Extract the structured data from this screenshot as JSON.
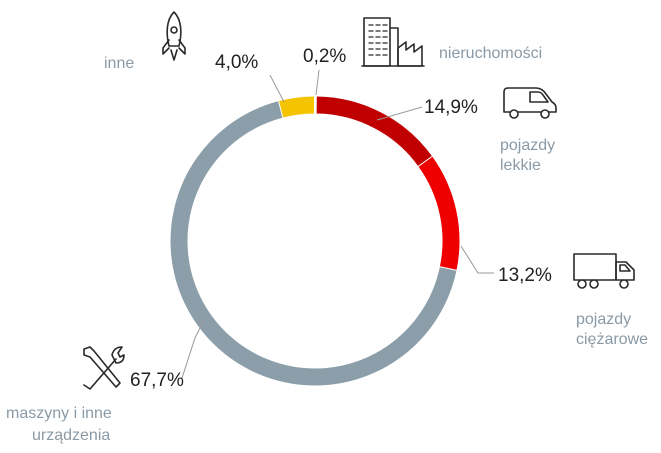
{
  "chart_data": {
    "type": "pie",
    "variant": "donut",
    "title": "",
    "series": [
      {
        "slices": [
          {
            "key": "nieruchomosci",
            "label_lines": [
              "nieruchomości"
            ],
            "value": 0.2,
            "value_label": "0,2%",
            "color": "#9a9a9a",
            "icon": "building-factory-icon"
          },
          {
            "key": "pojazdy_lekkie",
            "label_lines": [
              "pojazdy",
              "lekkie"
            ],
            "value": 14.9,
            "value_label": "14,9%",
            "color": "#c00000",
            "icon": "van-icon"
          },
          {
            "key": "pojazdy_ciezarowe",
            "label_lines": [
              "pojazdy",
              "ciężarowe"
            ],
            "value": 13.2,
            "value_label": "13,2%",
            "color": "#ee0000",
            "icon": "truck-icon"
          },
          {
            "key": "maszyny",
            "label_lines": [
              "maszyny i inne",
              "urządzenia"
            ],
            "value": 67.7,
            "value_label": "67,7%",
            "color": "#8c9ea9",
            "icon": "tools-icon"
          },
          {
            "key": "inne",
            "label_lines": [
              "inne"
            ],
            "value": 4.0,
            "value_label": "4,0%",
            "color": "#f5c400",
            "icon": "rocket-icon"
          }
        ]
      }
    ],
    "start_angle_deg": 0,
    "direction": "clockwise",
    "legend": "none"
  }
}
